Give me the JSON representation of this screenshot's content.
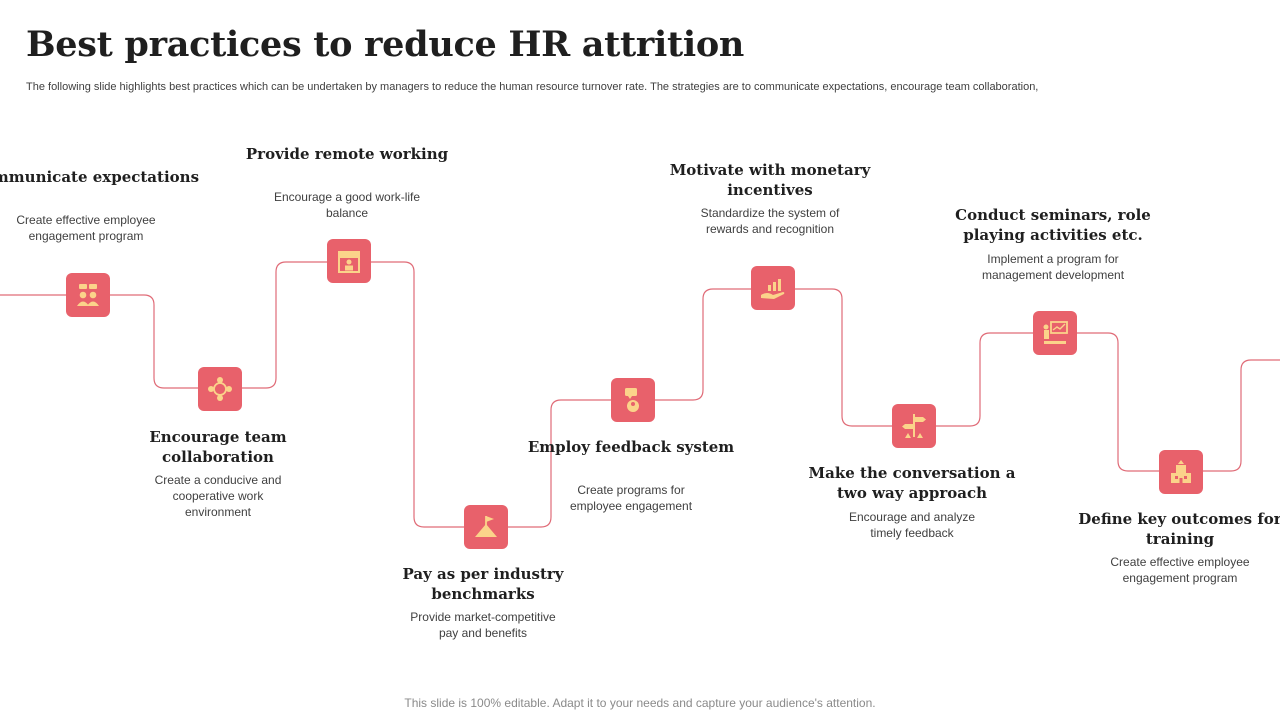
{
  "slide": {
    "title": "Best practices to reduce HR attrition",
    "subtitle": "The following slide highlights best practices which can be undertaken by managers to reduce the human resource turnover rate. The strategies are to communicate expectations, encourage team collaboration,",
    "footer": "This slide is 100% editable. Adapt it to your needs and capture your audience's attention."
  },
  "colors": {
    "accent": "#e8616b",
    "icon": "#fbd38a",
    "connector": "#e06c78"
  },
  "steps": [
    {
      "title": "Communicate expectations",
      "desc": "Create effective employee engagement program",
      "icon": "people-chat-icon"
    },
    {
      "title": "Encourage team collaboration",
      "desc": "Create a conducive and cooperative work environment",
      "icon": "team-cycle-icon"
    },
    {
      "title": "Provide remote working",
      "desc": "Encourage a good work-life balance",
      "icon": "remote-work-icon"
    },
    {
      "title": "Pay as per industry benchmarks",
      "desc": "Provide market-competitive pay and benefits",
      "icon": "flag-benchmark-icon"
    },
    {
      "title": "Employ feedback system",
      "desc": "Create programs for employee engagement",
      "icon": "feedback-icon"
    },
    {
      "title": "Motivate with monetary incentives",
      "desc": "Standardize the system of rewards and recognition",
      "icon": "money-hand-icon"
    },
    {
      "title": "Make the conversation a two way approach",
      "desc": "Encourage and analyze timely feedback",
      "icon": "signpost-icon"
    },
    {
      "title": "Conduct seminars, role playing activities etc.",
      "desc": "Implement a program for management development",
      "icon": "presentation-icon"
    },
    {
      "title": "Define key outcomes for training",
      "desc": "Create effective employee engagement program",
      "icon": "outcome-building-icon"
    }
  ]
}
